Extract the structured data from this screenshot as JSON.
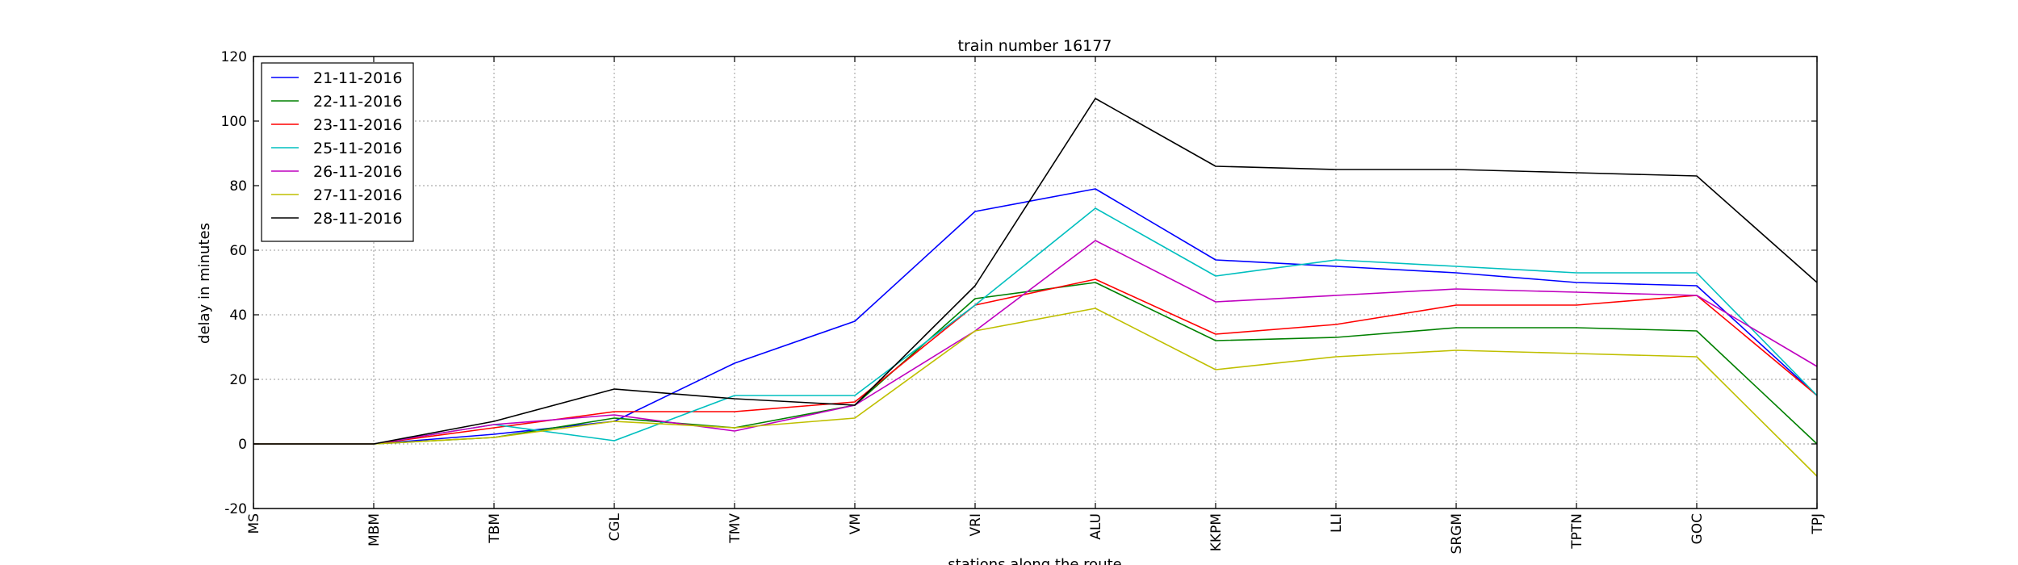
{
  "chart_data": {
    "type": "line",
    "title": "train number 16177",
    "xlabel": "stations along the route",
    "ylabel": "delay in minutes",
    "categories": [
      "MS",
      "MBM",
      "TBM",
      "CGL",
      "TMV",
      "VM",
      "VRI",
      "ALU",
      "KKPM",
      "LLI",
      "SRGM",
      "TPTN",
      "GOC",
      "TPJ"
    ],
    "ylim": [
      -20,
      120
    ],
    "yticks": [
      -20,
      0,
      20,
      40,
      60,
      80,
      100,
      120
    ],
    "grid": true,
    "legend_position": "top-left",
    "series": [
      {
        "name": "21-11-2016",
        "color": "#0000ff",
        "values": [
          0,
          0,
          3,
          7,
          25,
          38,
          72,
          79,
          57,
          55,
          53,
          50,
          49,
          15
        ]
      },
      {
        "name": "22-11-2016",
        "color": "#008000",
        "values": [
          0,
          0,
          2,
          8,
          5,
          12,
          45,
          50,
          32,
          33,
          36,
          36,
          35,
          0
        ]
      },
      {
        "name": "23-11-2016",
        "color": "#ff0000",
        "values": [
          0,
          0,
          5,
          10,
          10,
          13,
          43,
          51,
          34,
          37,
          43,
          43,
          46,
          15
        ]
      },
      {
        "name": "25-11-2016",
        "color": "#00bfbf",
        "values": [
          0,
          0,
          6,
          1,
          15,
          15,
          43,
          73,
          52,
          57,
          55,
          53,
          53,
          15
        ]
      },
      {
        "name": "26-11-2016",
        "color": "#bf00bf",
        "values": [
          0,
          0,
          6,
          9,
          4,
          12,
          35,
          63,
          44,
          46,
          48,
          47,
          46,
          24
        ]
      },
      {
        "name": "27-11-2016",
        "color": "#bfbf00",
        "values": [
          0,
          0,
          2,
          7,
          5,
          8,
          35,
          42,
          23,
          27,
          29,
          28,
          27,
          -10
        ]
      },
      {
        "name": "28-11-2016",
        "color": "#000000",
        "values": [
          0,
          0,
          7,
          17,
          14,
          12,
          49,
          107,
          86,
          85,
          85,
          84,
          83,
          50
        ]
      }
    ]
  }
}
